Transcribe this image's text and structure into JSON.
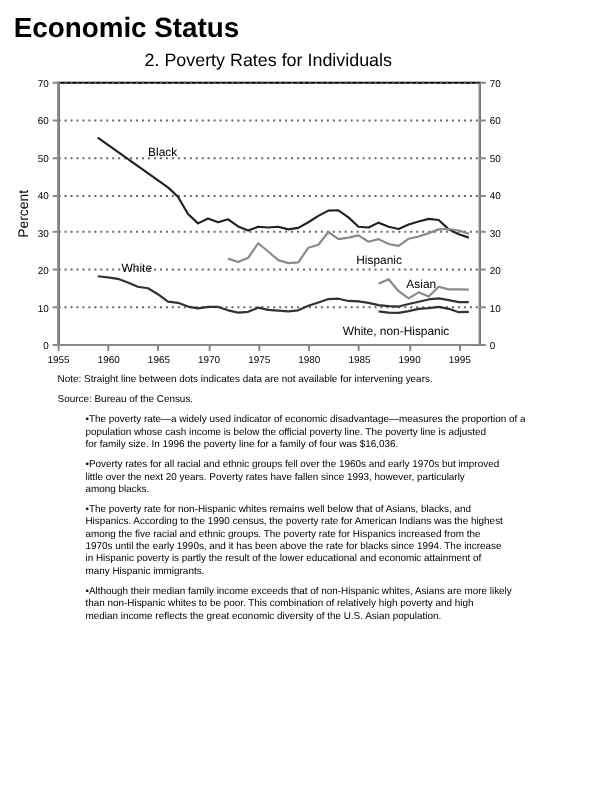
{
  "chart_data": {
    "type": "line",
    "title": "Economic Status",
    "subtitle": "2.  Poverty Rates for Individuals",
    "ylabel": "Percent",
    "xlim": [
      1955,
      1997
    ],
    "xticks": [
      1955,
      1960,
      1965,
      1970,
      1975,
      1980,
      1985,
      1990,
      1995
    ],
    "ylim": [
      0,
      70
    ],
    "yticks": [
      0,
      10,
      20,
      30,
      40,
      50,
      60,
      70
    ],
    "y2lim": [
      0,
      70
    ],
    "y2ticks": [
      0,
      10,
      20,
      30,
      40,
      50,
      60,
      70
    ],
    "grid": "y",
    "legend": false,
    "line_style": "solid",
    "series": [
      {
        "name": "Black",
        "color": "#222222",
        "x": [
          1959,
          1966,
          1967,
          1968,
          1969,
          1970,
          1971,
          1972,
          1973,
          1974,
          1975,
          1976,
          1977,
          1978,
          1979,
          1980,
          1981,
          1982,
          1983,
          1984,
          1985,
          1986,
          1987,
          1988,
          1989,
          1990,
          1991,
          1992,
          1993,
          1994,
          1995,
          1996
        ],
        "values": [
          55.1,
          41.8,
          39.3,
          34.7,
          32.2,
          33.5,
          32.5,
          33.3,
          31.4,
          30.3,
          31.3,
          31.1,
          31.3,
          30.6,
          31.0,
          32.5,
          34.2,
          35.6,
          35.7,
          33.8,
          31.3,
          31.1,
          32.4,
          31.3,
          30.7,
          31.9,
          32.7,
          33.4,
          33.1,
          30.6,
          29.3,
          28.4
        ]
      },
      {
        "name": "Hispanic",
        "color": "#8a8a8a",
        "x": [
          1972,
          1973,
          1974,
          1975,
          1976,
          1977,
          1978,
          1979,
          1980,
          1981,
          1982,
          1983,
          1984,
          1985,
          1986,
          1987,
          1988,
          1989,
          1990,
          1991,
          1992,
          1993,
          1994,
          1995,
          1996
        ],
        "values": [
          22.8,
          21.9,
          23.0,
          26.9,
          24.7,
          22.4,
          21.6,
          21.8,
          25.7,
          26.5,
          29.9,
          28.0,
          28.4,
          29.0,
          27.3,
          28.0,
          26.7,
          26.2,
          28.1,
          28.7,
          29.6,
          30.6,
          30.7,
          30.3,
          29.4
        ]
      },
      {
        "name": "White",
        "color": "#333333",
        "x": [
          1959,
          1960,
          1961,
          1962,
          1963,
          1964,
          1965,
          1966,
          1967,
          1968,
          1969,
          1970,
          1971,
          1972,
          1973,
          1974,
          1975,
          1976,
          1977,
          1978,
          1979,
          1980,
          1981,
          1982,
          1983,
          1984,
          1985,
          1986,
          1987,
          1988,
          1989,
          1990,
          1991,
          1992,
          1993,
          1994,
          1995,
          1996
        ],
        "values": [
          18.1,
          17.8,
          17.4,
          16.4,
          15.3,
          14.9,
          13.3,
          11.3,
          11.0,
          10.0,
          9.5,
          9.9,
          9.9,
          9.0,
          8.4,
          8.6,
          9.7,
          9.1,
          8.9,
          8.7,
          9.0,
          10.2,
          11.1,
          12.0,
          12.1,
          11.5,
          11.4,
          11.0,
          10.4,
          10.1,
          10.0,
          10.7,
          11.3,
          11.9,
          12.2,
          11.7,
          11.2,
          11.2
        ]
      },
      {
        "name": "Asian",
        "color": "#8a8a8a",
        "x": [
          1987,
          1988,
          1989,
          1990,
          1991,
          1992,
          1993,
          1994,
          1995,
          1996
        ],
        "values": [
          16.1,
          17.3,
          14.1,
          12.2,
          13.8,
          12.7,
          15.3,
          14.6,
          14.6,
          14.5
        ]
      },
      {
        "name": "White, non-Hispanic",
        "color": "#333333",
        "x": [
          1987,
          1988,
          1989,
          1990,
          1991,
          1992,
          1993,
          1994,
          1995,
          1996
        ],
        "values": [
          8.7,
          8.4,
          8.3,
          8.8,
          9.4,
          9.6,
          9.9,
          9.4,
          8.5,
          8.6
        ]
      }
    ],
    "annotations": [
      "Note:  Straight line between dots indicates data are not available for intervening years.",
      "Source: Bureau of the Census.",
      "•The poverty rate—a widely used indicator of economic disadvantage—measures the proportion of a population whose cash income is below the official poverty line.  The poverty line is adjusted for family size.  In 1996 the poverty line for a family of four was $16,036.",
      "•Poverty rates for all racial and ethnic groups fell over the 1960s and early 1970s but improved little over the next 20 years.  Poverty rates have fallen since 1993, however, particularly among blacks.",
      "•The poverty rate for non-Hispanic whites remains well below that of Asians, blacks, and Hispanics.  According to the 1990 census, the poverty rate for American Indians was the highest among the five racial and ethnic groups.  The poverty rate for Hispanics increased from the 1970s until the early 1990s, and it has been above the rate for blacks since 1994.  The increase in Hispanic poverty is partly the result of the lower educational and economic attainment of many Hispanic immigrants.",
      "•Although their median family income exceeds that of non-Hispanic whites, Asians are more likely than non-Hispanic whites to be poor.  This combination of relatively high poverty and high median income reflects the great economic diversity of the U.S. Asian population."
    ]
  }
}
